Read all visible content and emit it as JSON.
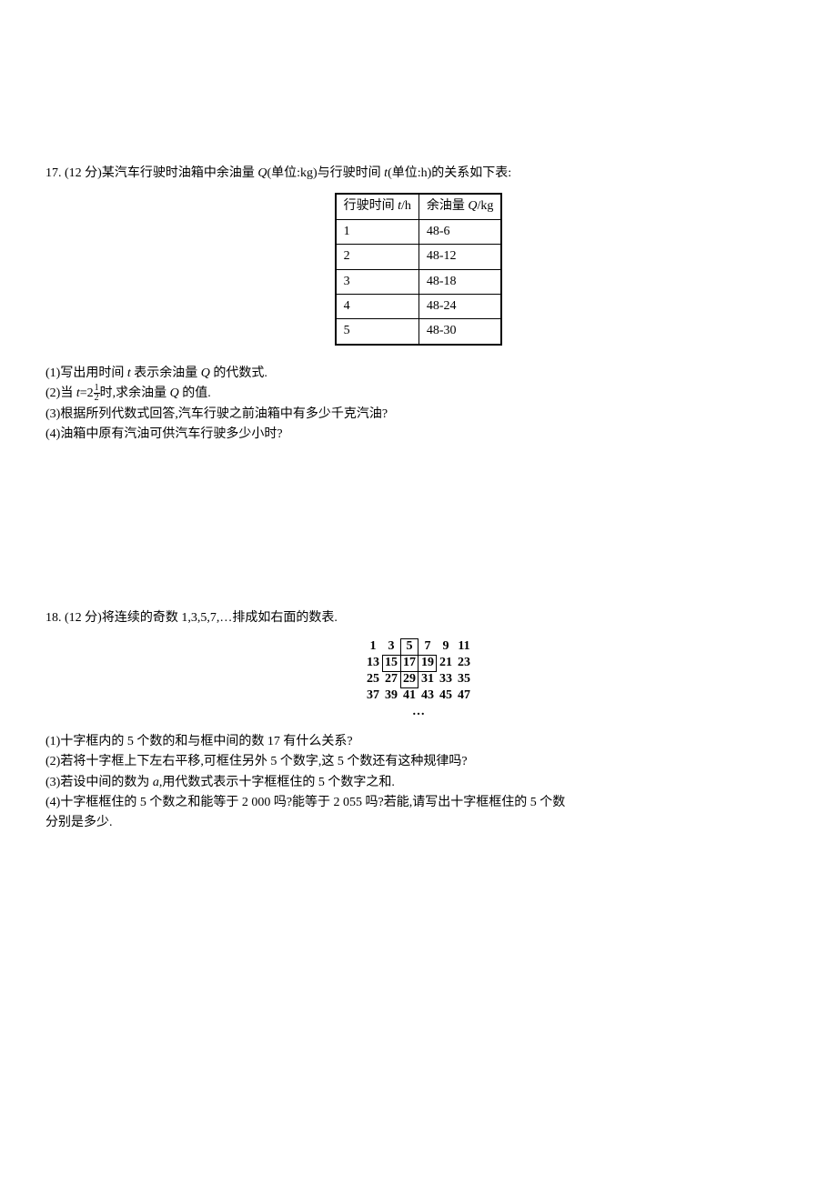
{
  "problem17": {
    "number": "17.",
    "points": "(12 分)",
    "intro_prefix": "某汽车行驶时油箱中余油量 ",
    "q_var": "Q",
    "q_unit": "(单位:kg)",
    "intro_mid": "与行驶时间 ",
    "t_var": "t",
    "t_unit": "(单位:h)",
    "intro_suffix": "的关系如下表:",
    "table": {
      "header_col1_prefix": "行驶时间 ",
      "header_col1_var": "t",
      "header_col1_suffix": "/h",
      "header_col2_prefix": "余油量 ",
      "header_col2_var": "Q",
      "header_col2_suffix": "/kg",
      "rows": [
        {
          "t": "1",
          "q": "48-6"
        },
        {
          "t": "2",
          "q": "48-12"
        },
        {
          "t": "3",
          "q": "48-18"
        },
        {
          "t": "4",
          "q": "48-24"
        },
        {
          "t": "5",
          "q": "48-30"
        }
      ]
    },
    "q1_prefix": "(1)写出用时间 ",
    "q1_var": "t",
    "q1_mid": " 表示余油量 ",
    "q1_var2": "Q",
    "q1_suffix": " 的代数式.",
    "q2_prefix": "(2)当 ",
    "q2_var": "t",
    "q2_eq": "=2",
    "q2_frac_num": "1",
    "q2_frac_den": "2",
    "q2_mid": "时,求余油量 ",
    "q2_var2": "Q",
    "q2_suffix": " 的值.",
    "q3": "(3)根据所列代数式回答,汽车行驶之前油箱中有多少千克汽油?",
    "q4": "(4)油箱中原有汽油可供汽车行驶多少小时?"
  },
  "problem18": {
    "number": "18.",
    "points": "(12 分)",
    "intro": "将连续的奇数 1,3,5,7,…排成如右面的数表.",
    "grid": {
      "row1": [
        "1",
        "3",
        "5",
        "7",
        "9",
        "11"
      ],
      "row2": [
        "13",
        "15",
        "17",
        "19",
        "21",
        "23"
      ],
      "row3": [
        "25",
        "27",
        "29",
        "31",
        "33",
        "35"
      ],
      "row4": [
        "37",
        "39",
        "41",
        "43",
        "45",
        "47"
      ],
      "ellipsis": "…"
    },
    "q1": "(1)十字框内的 5 个数的和与框中间的数 17 有什么关系?",
    "q2": "(2)若将十字框上下左右平移,可框住另外 5 个数字,这 5 个数还有这种规律吗?",
    "q3_prefix": "(3)若设中间的数为 ",
    "q3_var": "a",
    "q3_suffix": ",用代数式表示十字框框住的 5 个数字之和.",
    "q4_line1": "(4)十字框框住的 5 个数之和能等于 2 000 吗?能等于 2 055 吗?若能,请写出十字框框住的 5 个数",
    "q4_line2": "分别是多少."
  }
}
